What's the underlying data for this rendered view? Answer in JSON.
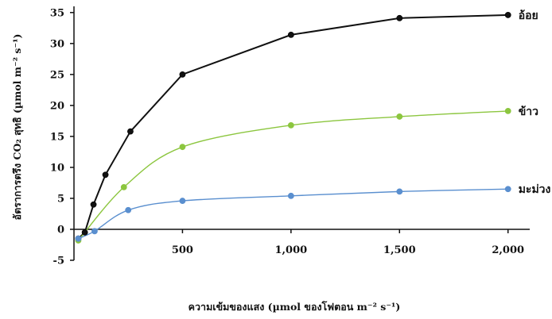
{
  "chart_data": {
    "type": "line",
    "xlabel": "ความเข้มของแสง (µmol ของโฟตอน m⁻² s⁻¹)",
    "ylabel": "อัตราการตรึง CO₂ สุทธิ (µmol m⁻² s⁻¹)",
    "xlim": [
      0,
      2100
    ],
    "ylim": [
      -5,
      36
    ],
    "x_ticks": [
      500,
      1000,
      1500,
      2000
    ],
    "x_tick_labels": [
      "500",
      "1,000",
      "1,500",
      "2,000"
    ],
    "y_ticks": [
      -5,
      0,
      5,
      10,
      15,
      20,
      25,
      30,
      35
    ],
    "y_tick_labels": [
      "-5",
      "0",
      "5",
      "10",
      "15",
      "20",
      "25",
      "30",
      "35"
    ],
    "grid": false,
    "legend": "direct labels at right end of each line",
    "series": [
      {
        "name": "อ้อย",
        "color": "#111111",
        "smooth": false,
        "x": [
          20,
          50,
          90,
          145,
          260,
          500,
          1000,
          1500,
          2000
        ],
        "y": [
          -1.5,
          -0.5,
          4,
          8.8,
          15.8,
          25,
          31.4,
          34.1,
          34.6
        ]
      },
      {
        "name": "ข้าว",
        "color": "#8cc63f",
        "smooth": true,
        "x": [
          20,
          230,
          500,
          1000,
          1500,
          2000
        ],
        "y": [
          -1.8,
          6.8,
          13.3,
          16.8,
          18.2,
          19.1
        ]
      },
      {
        "name": "มะม่วง",
        "color": "#5a8fcf",
        "smooth": true,
        "x": [
          20,
          95,
          250,
          500,
          1000,
          1500,
          2000
        ],
        "y": [
          -1.5,
          -0.3,
          3.1,
          4.6,
          5.4,
          6.1,
          6.5
        ]
      }
    ]
  }
}
